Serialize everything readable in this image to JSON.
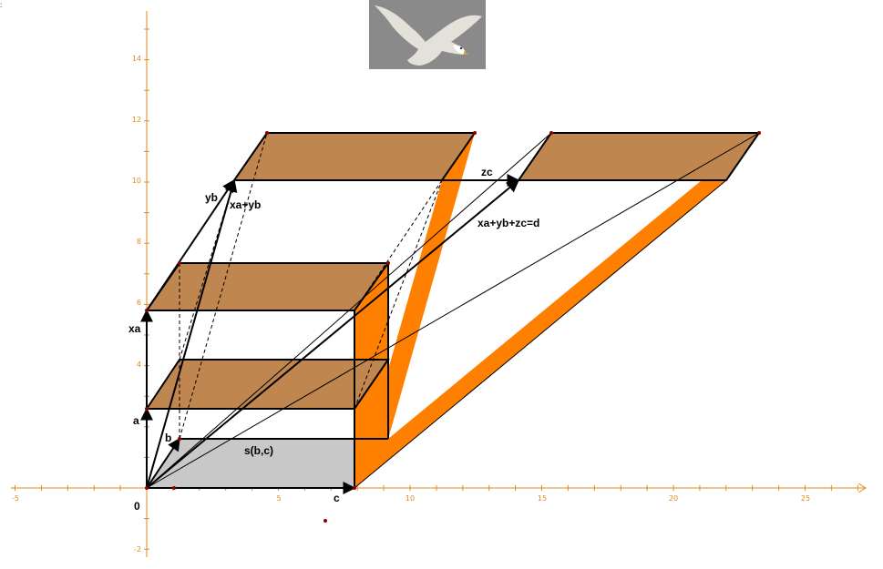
{
  "labels": {
    "origin": "0",
    "a": "a",
    "b": "b",
    "c": "c",
    "xa": "xa",
    "yb": "yb",
    "zc": "zc",
    "xa_yb": "xa+yb",
    "sum": "xa+yb+zc=d",
    "span": "s(b,c)"
  },
  "x_ticks": [
    "-5",
    "5",
    "10",
    "15",
    "20",
    "25"
  ],
  "y_ticks": [
    "14",
    "12",
    "10",
    "8",
    "6",
    "4",
    "-2"
  ],
  "colors": {
    "axis": "#e08a1e",
    "slab_top": "#bf8650",
    "slab_side": "#ff8000",
    "base": "#c8c8c8",
    "edge": "#000000"
  },
  "logo_icon": "eagle-image"
}
